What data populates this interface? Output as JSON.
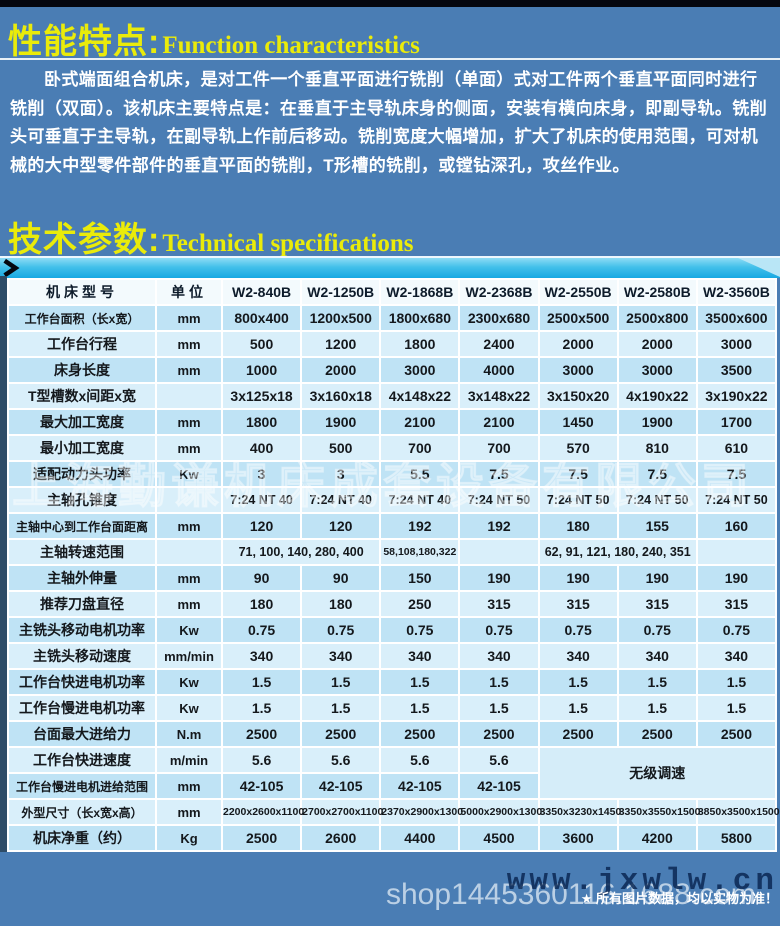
{
  "colors": {
    "page_bg": "#4a7db4",
    "accent_yellow": "#eaeb0a",
    "bar_cyan": "#2fb9e8",
    "row_dark": "#bfe3f5",
    "row_light": "#d9effa",
    "header_bg": "#f3fafd",
    "left_strip": "#2e4c67"
  },
  "sections": {
    "function": {
      "title_zh": "性能特点:",
      "title_en": "Function characteristics",
      "paragraph": "卧式端面组合机床，是对工件一个垂直平面进行铣削（单面）式对工件两个垂直平面同时进行铣削（双面）。该机床主要特点是：在垂直于主导轨床身的侧面，安装有横向床身，即副导轨。铣削头可垂直于主导轨，在副导轨上作前后移动。铣削宽度大幅增加，扩大了机床的使用范围，可对机械的大中型零件部件的垂直平面的铣削，T形槽的铣削，或镗钻深孔，攻丝作业。"
    },
    "technical": {
      "title_zh": "技术参数:",
      "title_en": "Technical specifications"
    }
  },
  "table": {
    "header": [
      "机床型号",
      "单位",
      "W2-840B",
      "W2-1250B",
      "W2-1868B",
      "W2-2368B",
      "W2-2550B",
      "W2-2580B",
      "W2-3560B"
    ],
    "rows": [
      {
        "label": "工作台面积（长x宽）",
        "unit": "mm",
        "cells": [
          "800x400",
          "1200x500",
          "1800x680",
          "2300x680",
          "2500x500",
          "2500x800",
          "3500x600"
        ]
      },
      {
        "label": "工作台行程",
        "unit": "mm",
        "cells": [
          "500",
          "1200",
          "1800",
          "2400",
          "2000",
          "2000",
          "3000"
        ]
      },
      {
        "label": "床身长度",
        "unit": "mm",
        "cells": [
          "1000",
          "2000",
          "3000",
          "4000",
          "3000",
          "3000",
          "3500"
        ]
      },
      {
        "label": "T型槽数x间距x宽",
        "unit": "",
        "cells": [
          "3x125x18",
          "3x160x18",
          "4x148x22",
          "3x148x22",
          "3x150x20",
          "4x190x22",
          "3x190x22"
        ]
      },
      {
        "label": "最大加工宽度",
        "unit": "mm",
        "cells": [
          "1800",
          "1900",
          "2100",
          "2100",
          "1450",
          "1900",
          "1700"
        ]
      },
      {
        "label": "最小加工宽度",
        "unit": "mm",
        "cells": [
          "400",
          "500",
          "700",
          "700",
          "570",
          "810",
          "610"
        ]
      },
      {
        "label": "适配动力头功率",
        "unit": "Kw",
        "cells": [
          "3",
          "3",
          "5.5",
          "7.5",
          "7.5",
          "7.5",
          "7.5"
        ]
      },
      {
        "label": "主轴孔锥度",
        "unit": "",
        "cells": [
          "7:24 NT 40",
          "7:24 NT 40",
          "7:24 NT 40",
          "7:24 NT 50",
          "7:24 NT 50",
          "7:24 NT 50",
          "7:24 NT 50"
        ]
      },
      {
        "label": "主轴中心到工作台面距离",
        "unit": "mm",
        "cells": [
          "120",
          "120",
          "192",
          "192",
          "180",
          "155",
          "160"
        ]
      },
      {
        "label": "主轴转速范围",
        "unit": "",
        "cells": [
          {
            "v": "71, 100, 140, 280, 400",
            "span": 2
          },
          "58,108,180,322",
          "",
          {
            "v": "62, 91, 121, 180, 240, 351",
            "span": 2
          },
          ""
        ]
      },
      {
        "label": "主轴外伸量",
        "unit": "mm",
        "cells": [
          "90",
          "90",
          "150",
          "190",
          "190",
          "190",
          "190"
        ]
      },
      {
        "label": "推荐刀盘直径",
        "unit": "mm",
        "cells": [
          "180",
          "180",
          "250",
          "315",
          "315",
          "315",
          "315"
        ]
      },
      {
        "label": "主铣头移动电机功率",
        "unit": "Kw",
        "cells": [
          "0.75",
          "0.75",
          "0.75",
          "0.75",
          "0.75",
          "0.75",
          "0.75"
        ]
      },
      {
        "label": "主铣头移动速度",
        "unit": "mm/min",
        "cells": [
          "340",
          "340",
          "340",
          "340",
          "340",
          "340",
          "340"
        ]
      },
      {
        "label": "工作台快进电机功率",
        "unit": "Kw",
        "cells": [
          "1.5",
          "1.5",
          "1.5",
          "1.5",
          "1.5",
          "1.5",
          "1.5"
        ]
      },
      {
        "label": "工作台慢进电机功率",
        "unit": "Kw",
        "cells": [
          "1.5",
          "1.5",
          "1.5",
          "1.5",
          "1.5",
          "1.5",
          "1.5"
        ]
      },
      {
        "label": "台面最大进给力",
        "unit": "N.m",
        "cells": [
          "2500",
          "2500",
          "2500",
          "2500",
          "2500",
          "2500",
          "2500"
        ]
      },
      {
        "label": "工作台快进速度",
        "unit": "m/min",
        "cells": [
          "5.6",
          "5.6",
          "5.6",
          "5.6",
          {
            "v": "无级调速",
            "span": 3,
            "rowspan": 2,
            "cls": "stepless"
          }
        ]
      },
      {
        "label": "工作台慢进电机进给范围",
        "unit": "mm",
        "cells": [
          "42-105",
          "42-105",
          "42-105",
          "42-105"
        ]
      },
      {
        "label": "外型尺寸（长x宽x高）",
        "unit": "mm",
        "cells": [
          "2200x2600x1100",
          "2700x2700x1100",
          "2370x2900x1300",
          "5000x2900x1300",
          "3350x3230x1450",
          "3350x3550x1500",
          "3850x3500x1500"
        ]
      },
      {
        "label": "机床净重（约）",
        "unit": "Kg",
        "cells": [
          "2500",
          "2600",
          "4400",
          "4500",
          "3600",
          "4200",
          "5800"
        ]
      }
    ]
  },
  "watermarks": {
    "company": "上海勤谦机床成套设备有限公司",
    "shop_url": "shop1445360116.1688.com",
    "site_url": "www.jxwlw.cn",
    "disclaimer": "★ 所有图片数据，均以实物为准！"
  }
}
